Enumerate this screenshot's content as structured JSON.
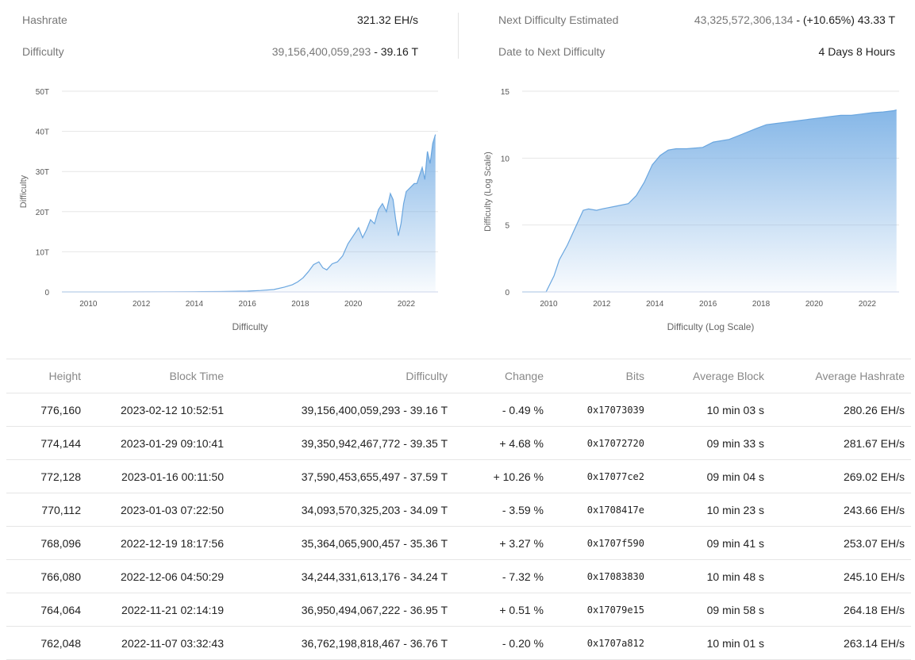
{
  "stats": {
    "hashrate_label": "Hashrate",
    "hashrate_value": "321.32 EH/s",
    "difficulty_label": "Difficulty",
    "difficulty_value": "39,156,400,059,293",
    "difficulty_short": " - 39.16 T",
    "next_label": "Next Difficulty Estimated",
    "next_value": "43,325,572,306,134",
    "next_short": " - (+10.65%) 43.33 T",
    "date_next_label": "Date to Next Difficulty",
    "date_next_value": "4 Days 8 Hours"
  },
  "colors": {
    "area": "#7fb3e6",
    "grid": "#e6e6e6",
    "link": "#2a7ab8",
    "negative": "#d32f2f",
    "positive": "#2e9a2e"
  },
  "chart_data": [
    {
      "type": "area",
      "title": "Difficulty",
      "ylabel": "Difficulty",
      "xlabel": "Difficulty",
      "xlim": [
        2009,
        2023.2
      ],
      "ylim": [
        0,
        50
      ],
      "xticks": [
        "2010",
        "2012",
        "2014",
        "2016",
        "2018",
        "2020",
        "2022"
      ],
      "yticks": [
        "0",
        "10T",
        "20T",
        "30T",
        "40T",
        "50T"
      ],
      "x": [
        2009,
        2011,
        2013,
        2014,
        2015,
        2016,
        2016.5,
        2017,
        2017.4,
        2017.7,
        2017.9,
        2018.1,
        2018.3,
        2018.5,
        2018.7,
        2018.85,
        2019,
        2019.2,
        2019.4,
        2019.6,
        2019.8,
        2020,
        2020.2,
        2020.35,
        2020.5,
        2020.65,
        2020.8,
        2020.95,
        2021.1,
        2021.25,
        2021.4,
        2021.5,
        2021.6,
        2021.7,
        2021.8,
        2021.9,
        2022,
        2022.15,
        2022.3,
        2022.4,
        2022.5,
        2022.6,
        2022.7,
        2022.8,
        2022.9,
        2023,
        2023.1
      ],
      "values": [
        0,
        0,
        0.01,
        0.05,
        0.1,
        0.2,
        0.35,
        0.6,
        1.2,
        1.8,
        2.5,
        3.5,
        5,
        6.8,
        7.5,
        6,
        5.5,
        7,
        7.5,
        9,
        12,
        14,
        16,
        13.5,
        15.5,
        18,
        17,
        20.5,
        22,
        20,
        24.5,
        23,
        18,
        14,
        17,
        22,
        25,
        26,
        27,
        27,
        29,
        31,
        28,
        35,
        32,
        37,
        39.2
      ],
      "grid": true
    },
    {
      "type": "area",
      "title": "Difficulty (Log Scale)",
      "ylabel": "Difficulty (Log Scale)",
      "xlabel": "Difficulty (Log Scale)",
      "xlim": [
        2009,
        2023.2
      ],
      "ylim": [
        0,
        15
      ],
      "xticks": [
        "2010",
        "2012",
        "2014",
        "2016",
        "2018",
        "2020",
        "2022"
      ],
      "yticks": [
        "0",
        "5",
        "10",
        "15"
      ],
      "x": [
        2009,
        2009.9,
        2010.2,
        2010.4,
        2010.7,
        2011,
        2011.3,
        2011.5,
        2011.8,
        2012,
        2012.5,
        2013,
        2013.3,
        2013.6,
        2013.9,
        2014.2,
        2014.5,
        2014.8,
        2015.2,
        2015.8,
        2016.2,
        2016.8,
        2017.3,
        2017.8,
        2018.2,
        2018.6,
        2019,
        2019.4,
        2019.8,
        2020.2,
        2020.6,
        2021,
        2021.4,
        2021.8,
        2022.2,
        2022.6,
        2023,
        2023.1
      ],
      "values": [
        0,
        0,
        1.2,
        2.4,
        3.5,
        4.8,
        6.1,
        6.2,
        6.1,
        6.2,
        6.4,
        6.6,
        7.2,
        8.2,
        9.5,
        10.2,
        10.6,
        10.7,
        10.7,
        10.8,
        11.2,
        11.4,
        11.8,
        12.2,
        12.5,
        12.6,
        12.7,
        12.8,
        12.9,
        13,
        13.1,
        13.2,
        13.2,
        13.3,
        13.4,
        13.45,
        13.55,
        13.6
      ],
      "grid": true
    }
  ],
  "table": {
    "headers": [
      "Height",
      "Block Time",
      "Difficulty",
      "Change",
      "Bits",
      "Average Block",
      "Average Hashrate"
    ],
    "rows": [
      {
        "height": "776,160",
        "time": "2023-02-12 10:52:51",
        "difficulty": "39,156,400,059,293 - 39.16 T",
        "change": "- 0.49 %",
        "bits": "0x17073039",
        "avg_block": "10 min 03 s",
        "avg_hashrate": "280.26 EH/s",
        "trend": "neg"
      },
      {
        "height": "774,144",
        "time": "2023-01-29 09:10:41",
        "difficulty": "39,350,942,467,772 - 39.35 T",
        "change": "+ 4.68 %",
        "bits": "0x17072720",
        "avg_block": "09 min 33 s",
        "avg_hashrate": "281.67 EH/s",
        "trend": "pos"
      },
      {
        "height": "772,128",
        "time": "2023-01-16 00:11:50",
        "difficulty": "37,590,453,655,497 - 37.59 T",
        "change": "+ 10.26 %",
        "bits": "0x17077ce2",
        "avg_block": "09 min 04 s",
        "avg_hashrate": "269.02 EH/s",
        "trend": "pos"
      },
      {
        "height": "770,112",
        "time": "2023-01-03 07:22:50",
        "difficulty": "34,093,570,325,203 - 34.09 T",
        "change": "- 3.59 %",
        "bits": "0x1708417e",
        "avg_block": "10 min 23 s",
        "avg_hashrate": "243.66 EH/s",
        "trend": "neg"
      },
      {
        "height": "768,096",
        "time": "2022-12-19 18:17:56",
        "difficulty": "35,364,065,900,457 - 35.36 T",
        "change": "+ 3.27 %",
        "bits": "0x1707f590",
        "avg_block": "09 min 41 s",
        "avg_hashrate": "253.07 EH/s",
        "trend": "pos"
      },
      {
        "height": "766,080",
        "time": "2022-12-06 04:50:29",
        "difficulty": "34,244,331,613,176 - 34.24 T",
        "change": "- 7.32 %",
        "bits": "0x17083830",
        "avg_block": "10 min 48 s",
        "avg_hashrate": "245.10 EH/s",
        "trend": "neg"
      },
      {
        "height": "764,064",
        "time": "2022-11-21 02:14:19",
        "difficulty": "36,950,494,067,222 - 36.95 T",
        "change": "+ 0.51 %",
        "bits": "0x17079e15",
        "avg_block": "09 min 58 s",
        "avg_hashrate": "264.18 EH/s",
        "trend": "pos"
      },
      {
        "height": "762,048",
        "time": "2022-11-07 03:32:43",
        "difficulty": "36,762,198,818,467 - 36.76 T",
        "change": "- 0.20 %",
        "bits": "0x1707a812",
        "avg_block": "10 min 01 s",
        "avg_hashrate": "263.14 EH/s",
        "trend": "neg"
      }
    ]
  }
}
